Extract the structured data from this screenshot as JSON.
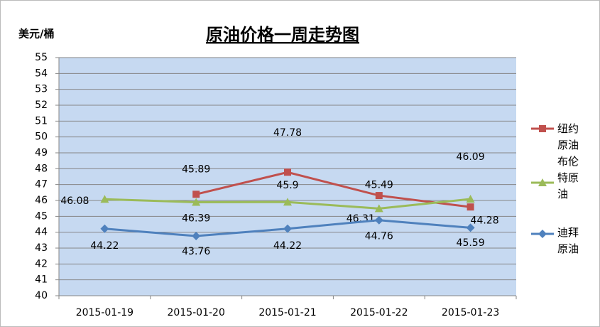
{
  "chart_data": {
    "type": "line",
    "title": "原油价格一周走势图",
    "y_label": "美元/桶",
    "categories": [
      "2015-01-19",
      "2015-01-20",
      "2015-01-21",
      "2015-01-22",
      "2015-01-23"
    ],
    "series": [
      {
        "name": "纽约原油",
        "color": "#c0504d",
        "marker": "square",
        "values": [
          null,
          46.39,
          47.78,
          46.31,
          45.59
        ]
      },
      {
        "name": "布伦特原油",
        "color": "#9bbb59",
        "marker": "triangle",
        "values": [
          46.08,
          45.89,
          45.9,
          45.49,
          46.09
        ]
      },
      {
        "name": "迪拜原油",
        "color": "#4f81bd",
        "marker": "diamond",
        "values": [
          44.22,
          43.76,
          44.22,
          44.76,
          44.28
        ]
      }
    ],
    "ylim": [
      40,
      55
    ],
    "yticks": [
      40,
      41,
      42,
      43,
      44,
      45,
      46,
      47,
      48,
      49,
      50,
      51,
      52,
      53,
      54,
      55
    ],
    "grid": true,
    "legend": "right"
  }
}
